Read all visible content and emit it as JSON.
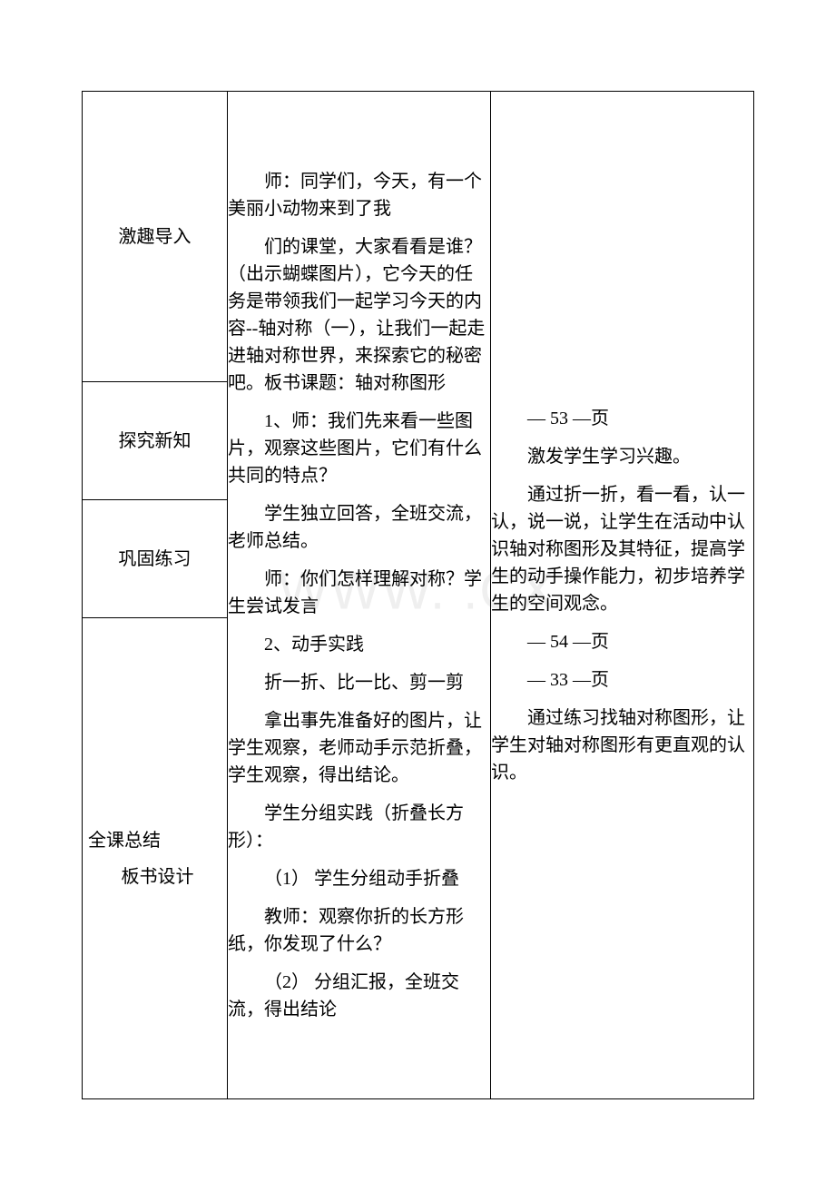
{
  "watermark": "WWW.    .CX",
  "col1": {
    "stage1": "激趣导入",
    "stage2": "探究新知",
    "stage3": "巩固练习",
    "stage4a": "全课总结",
    "stage4b": "板书设计"
  },
  "col2": {
    "p1": "师：同学们，今天，有一个美丽小动物来到了我",
    "p2": "们的课堂，大家看看是谁？（出示蝴蝶图片），它今天的任务是带领我们一起学习今天的内容--轴对称（一），让我们一起走进轴对称世界，来探索它的秘密吧。板书课题：轴对称图形",
    "p3": "1、师：我们先来看一些图片，观察这些图片，它们有什么共同的特点？",
    "p4": "学生独立回答，全班交流，老师总结。",
    "p5": "师：你们怎样理解对称？学生尝试发言",
    "p6": "2、动手实践",
    "p7": "折一折、比一比、剪一剪",
    "p8": "拿出事先准备好的图片，让学生观察，老师动手示范折叠，学生观察，得出结论。",
    "p9": "学生分组实践（折叠长方形）：",
    "p10": "（1） 学生分组动手折叠",
    "p11": "教师：观察你折的长方形纸，你发现了什么？",
    "p12": "（2） 分组汇报，全班交流，得出结论"
  },
  "col3": {
    "p1": "— 53 —页",
    "p2": "激发学生学习兴趣。",
    "p3": "通过折一折，看一看，认一认，说一说，让学生在活动中认识轴对称图形及其特征，提高学生的动手操作能力，初步培养学生的空间观念。",
    "p4": "— 54 —页",
    "p5": "— 33 —页",
    "p6": "通过练习找轴对称图形，让学生对轴对称图形有更直观的认识。"
  }
}
